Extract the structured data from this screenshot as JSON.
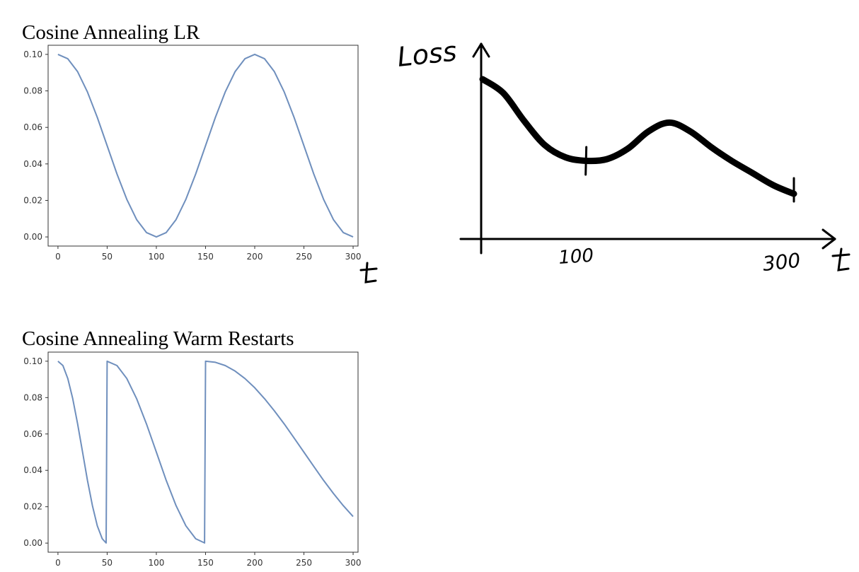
{
  "colors": {
    "series": "#6f8fbd",
    "axes": "#333333",
    "ink": "#000000"
  },
  "chart_data": [
    {
      "type": "line",
      "title": "Cosine Annealing LR",
      "xlabel": "t",
      "ylabel": "",
      "xlim": [
        -10,
        305
      ],
      "ylim": [
        -0.005,
        0.105
      ],
      "xticks": [
        0,
        50,
        100,
        150,
        200,
        250,
        300
      ],
      "yticks": [
        0.0,
        0.02,
        0.04,
        0.06,
        0.08,
        0.1
      ],
      "ytick_labels": [
        "0.00",
        "0.02",
        "0.04",
        "0.06",
        "0.08",
        "0.10"
      ],
      "grid": false,
      "series": [
        {
          "x": [
            0,
            10,
            20,
            30,
            40,
            50,
            60,
            70,
            80,
            90,
            100,
            110,
            120,
            130,
            140,
            150,
            160,
            170,
            180,
            190,
            200,
            210,
            220,
            230,
            240,
            250,
            260,
            270,
            280,
            290,
            300
          ],
          "y": [
            0.1,
            0.0976,
            0.0905,
            0.0794,
            0.0655,
            0.05,
            0.0345,
            0.0206,
            0.0095,
            0.0024,
            0.0,
            0.0024,
            0.0095,
            0.0206,
            0.0345,
            0.05,
            0.0655,
            0.0794,
            0.0905,
            0.0976,
            0.1,
            0.0976,
            0.0905,
            0.0794,
            0.0655,
            0.05,
            0.0345,
            0.0206,
            0.0095,
            0.0024,
            0.0
          ]
        }
      ]
    },
    {
      "type": "line",
      "title": "Cosine Annealing Warm Restarts",
      "xlabel": "",
      "ylabel": "",
      "xlim": [
        -10,
        305
      ],
      "ylim": [
        -0.005,
        0.105
      ],
      "xticks": [
        0,
        50,
        100,
        150,
        200,
        250,
        300
      ],
      "yticks": [
        0.0,
        0.02,
        0.04,
        0.06,
        0.08,
        0.1
      ],
      "ytick_labels": [
        "0.00",
        "0.02",
        "0.04",
        "0.06",
        "0.08",
        "0.10"
      ],
      "grid": false,
      "series": [
        {
          "x": [
            0,
            5,
            10,
            15,
            20,
            25,
            30,
            35,
            40,
            45,
            49,
            50,
            60,
            70,
            80,
            90,
            100,
            110,
            120,
            130,
            140,
            149,
            150,
            160,
            170,
            180,
            190,
            200,
            210,
            220,
            230,
            240,
            250,
            260,
            270,
            280,
            290,
            300
          ],
          "y": [
            0.1,
            0.0976,
            0.0905,
            0.0794,
            0.0655,
            0.05,
            0.0345,
            0.0206,
            0.0095,
            0.0024,
            0.0001,
            0.1,
            0.0976,
            0.0905,
            0.0794,
            0.0655,
            0.05,
            0.0345,
            0.0206,
            0.0095,
            0.0024,
            0.0001,
            0.1,
            0.0994,
            0.0976,
            0.0946,
            0.0905,
            0.0854,
            0.0794,
            0.0727,
            0.0655,
            0.0578,
            0.05,
            0.0422,
            0.0345,
            0.0273,
            0.0206,
            0.0146
          ]
        }
      ]
    },
    {
      "type": "line",
      "title": "",
      "ylabel": "Loss",
      "xlabel": "t",
      "xtick_labels": [
        "100",
        "300"
      ],
      "note": "hand-drawn sketch",
      "series": [
        {
          "x": [
            0,
            20,
            40,
            60,
            80,
            100,
            120,
            140,
            160,
            180,
            200,
            220,
            240,
            260,
            280,
            300
          ],
          "y": [
            0.92,
            0.84,
            0.68,
            0.54,
            0.47,
            0.45,
            0.46,
            0.52,
            0.62,
            0.67,
            0.62,
            0.53,
            0.45,
            0.38,
            0.31,
            0.26
          ]
        }
      ]
    }
  ]
}
